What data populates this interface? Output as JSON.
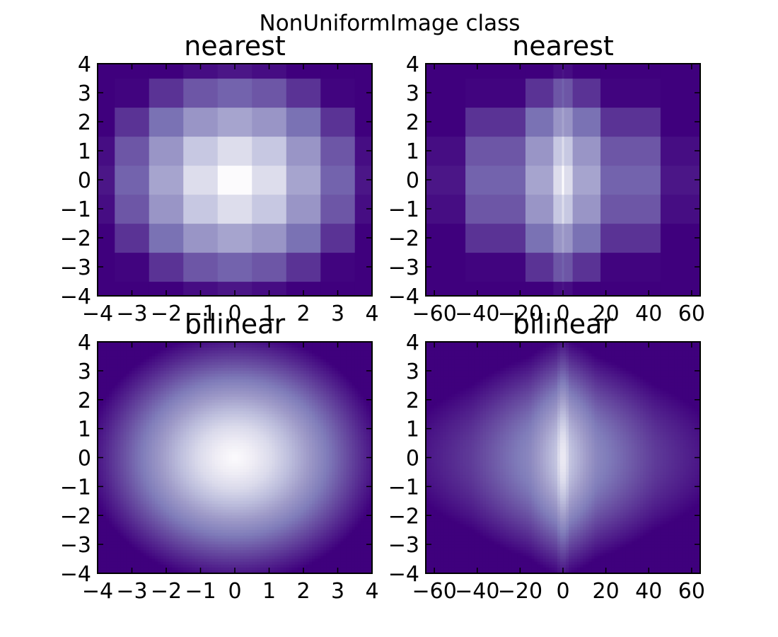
{
  "figure": {
    "suptitle": "NonUniformImage class"
  },
  "colormap": {
    "name": "Purples",
    "stops": [
      "#3f007d",
      "#54278f",
      "#6a51a3",
      "#807dba",
      "#9e9ac8",
      "#bcbddc",
      "#dadaeb",
      "#efedf5",
      "#fcfbfd"
    ]
  },
  "chart_data": [
    {
      "type": "heatmap",
      "title": "nearest",
      "interpolation": "nearest",
      "function": "sqrt(x^2 + y^2), colored with the Purples colormap reversed",
      "x": [
        -4,
        -3.5,
        -2.5,
        -1.5,
        -0.5,
        0.5,
        1.5,
        2.5,
        3.5,
        4
      ],
      "y": [
        -4,
        -3.5,
        -2.5,
        -1.5,
        -0.5,
        0.5,
        1.5,
        2.5,
        3.5,
        4
      ],
      "xlim": [
        -4,
        4
      ],
      "ylim": [
        -4,
        4
      ],
      "xticks": [
        -4,
        -3,
        -2,
        -1,
        0,
        1,
        2,
        3,
        4
      ],
      "xtick_labels": [
        "−4",
        "−3",
        "−2",
        "−1",
        "0",
        "1",
        "2",
        "3",
        "4"
      ],
      "yticks": [
        -4,
        -3,
        -2,
        -1,
        0,
        1,
        2,
        3,
        4
      ],
      "ytick_labels": [
        "−4",
        "−3",
        "−2",
        "−1",
        "0",
        "1",
        "2",
        "3",
        "4"
      ],
      "xlabel": "",
      "ylabel": ""
    },
    {
      "type": "heatmap",
      "title": "nearest",
      "interpolation": "nearest",
      "function": "sqrt(x^2 + y^2) on a non-uniform x grid (x = u^3), colored with the Purples colormap reversed",
      "x": [
        -64,
        -42.875,
        -15.625,
        -3.375,
        -0.125,
        0.125,
        3.375,
        15.625,
        42.875,
        64
      ],
      "y": [
        -4,
        -3.5,
        -2.5,
        -1.5,
        -0.5,
        0.5,
        1.5,
        2.5,
        3.5,
        4
      ],
      "xlim": [
        -64,
        64
      ],
      "ylim": [
        -4,
        4
      ],
      "xticks": [
        -60,
        -40,
        -20,
        0,
        20,
        40,
        60
      ],
      "xtick_labels": [
        "−60",
        "−40",
        "−20",
        "0",
        "20",
        "40",
        "60"
      ],
      "yticks": [
        -4,
        -3,
        -2,
        -1,
        0,
        1,
        2,
        3,
        4
      ],
      "ytick_labels": [
        "−4",
        "−3",
        "−2",
        "−1",
        "0",
        "1",
        "2",
        "3",
        "4"
      ],
      "xlabel": "",
      "ylabel": ""
    },
    {
      "type": "heatmap",
      "title": "bilinear",
      "interpolation": "bilinear",
      "function": "sqrt(x^2 + y^2), colored with the Purples colormap reversed",
      "x": [
        -4,
        -3.5,
        -2.5,
        -1.5,
        -0.5,
        0.5,
        1.5,
        2.5,
        3.5,
        4
      ],
      "y": [
        -4,
        -3.5,
        -2.5,
        -1.5,
        -0.5,
        0.5,
        1.5,
        2.5,
        3.5,
        4
      ],
      "xlim": [
        -4,
        4
      ],
      "ylim": [
        -4,
        4
      ],
      "xticks": [
        -4,
        -3,
        -2,
        -1,
        0,
        1,
        2,
        3,
        4
      ],
      "xtick_labels": [
        "−4",
        "−3",
        "−2",
        "−1",
        "0",
        "1",
        "2",
        "3",
        "4"
      ],
      "yticks": [
        -4,
        -3,
        -2,
        -1,
        0,
        1,
        2,
        3,
        4
      ],
      "ytick_labels": [
        "−4",
        "−3",
        "−2",
        "−1",
        "0",
        "1",
        "2",
        "3",
        "4"
      ],
      "xlabel": "",
      "ylabel": ""
    },
    {
      "type": "heatmap",
      "title": "bilinear",
      "interpolation": "bilinear",
      "function": "sqrt(x^2 + y^2) on a non-uniform x grid (x = u^3), colored with the Purples colormap reversed",
      "x": [
        -64,
        -42.875,
        -15.625,
        -3.375,
        -0.125,
        0.125,
        3.375,
        15.625,
        42.875,
        64
      ],
      "y": [
        -4,
        -3.5,
        -2.5,
        -1.5,
        -0.5,
        0.5,
        1.5,
        2.5,
        3.5,
        4
      ],
      "xlim": [
        -64,
        64
      ],
      "ylim": [
        -4,
        4
      ],
      "xticks": [
        -60,
        -40,
        -20,
        0,
        20,
        40,
        60
      ],
      "xtick_labels": [
        "−60",
        "−40",
        "−20",
        "0",
        "20",
        "40",
        "60"
      ],
      "yticks": [
        -4,
        -3,
        -2,
        -1,
        0,
        1,
        2,
        3,
        4
      ],
      "ytick_labels": [
        "−4",
        "−3",
        "−2",
        "−1",
        "0",
        "1",
        "2",
        "3",
        "4"
      ],
      "xlabel": "",
      "ylabel": ""
    }
  ]
}
